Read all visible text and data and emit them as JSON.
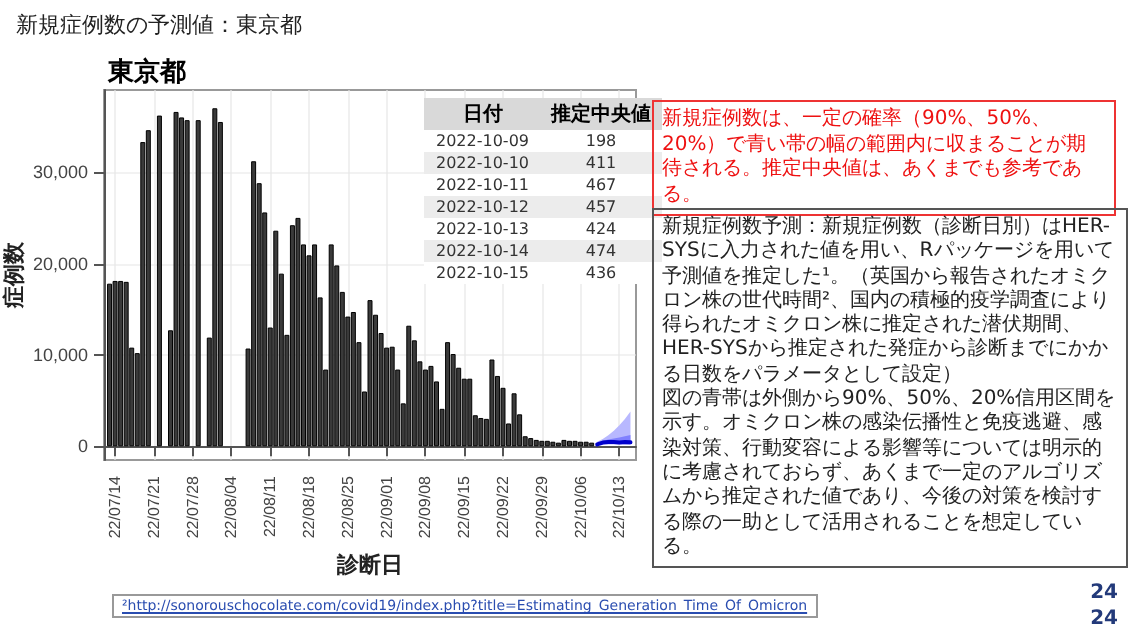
{
  "chart_data": {
    "type": "bar",
    "title": "新規症例数の予測値：東京都",
    "subtitle": "東京都",
    "xlabel": "診断日",
    "ylabel": "症例数",
    "annotations": [
      "新規症例数は、一定の確率（90%、50%、20%）で青い帯の幅の範囲内に収まることが期待される。推定中央値は、あくまでも参考である。",
      "新規症例数予測：新規症例数（診断日別）はHER-SYSに入力された値を用い、Rパッケージを用いて予測値を推定した¹。（英国から報告されたオミクロン株の世代時間²、国内の積極的疫学調査により得られたオミクロン株に推定された潜伏期間、HER-SYSから推定された発症から診断までにかかる日数をパラメータとして設定）",
      "図の青帯は外側から90%、50%、20%信用区間を示す。オミクロン株の感染伝播性と免疫逃避、感染対策、行動変容による影響等については明示的に考慮されておらず、あくまで一定のアルゴリズムから推定された値であり、今後の対策を検討する際の一助として活用されることを想定している。",
      "²http://sonorouschocolate.com/covid19/index.php?title=Estimating_Generation_Time_Of_Omicron",
      "24",
      "24",
      "日付",
      "推定中央値",
      "2022-10-09",
      "2022-10-10",
      "2022-10-11",
      "2022-10-12",
      "2022-10-13",
      "2022-10-14",
      "2022-10-15",
      "198",
      "411",
      "467",
      "457",
      "424",
      "474",
      "436"
    ],
    "xlim": [
      "2022-07-12",
      "2022-10-16"
    ],
    "xticks": [
      {
        "value": "2022-07-14",
        "label": "22/07/14"
      },
      {
        "value": "2022-07-21",
        "label": "22/07/21"
      },
      {
        "value": "2022-07-28",
        "label": "22/07/28"
      },
      {
        "value": "2022-08-04",
        "label": "22/08/04"
      },
      {
        "value": "2022-08-11",
        "label": "22/08/11"
      },
      {
        "value": "2022-08-18",
        "label": "22/08/18"
      },
      {
        "value": "2022-08-25",
        "label": "22/08/25"
      },
      {
        "value": "2022-09-01",
        "label": "22/09/01"
      },
      {
        "value": "2022-09-08",
        "label": "22/09/08"
      },
      {
        "value": "2022-09-15",
        "label": "22/09/15"
      },
      {
        "value": "2022-09-22",
        "label": "22/09/22"
      },
      {
        "value": "2022-09-29",
        "label": "22/09/29"
      },
      {
        "value": "2022-10-06",
        "label": "22/10/06"
      },
      {
        "value": "2022-10-13",
        "label": "22/10/13"
      }
    ],
    "ylim": [
      -1500,
      39000
    ],
    "yticks": [
      0,
      {
        "value": 10000,
        "label": "10,000"
      },
      {
        "value": 20000,
        "label": "20,000"
      },
      {
        "value": 30000,
        "label": "30,000"
      }
    ],
    "grid": true,
    "series": [
      {
        "color": "#3a3a3a",
        "x": [
          "2022-07-13",
          "2022-07-14",
          "2022-07-15",
          "2022-07-16",
          "2022-07-17",
          "2022-07-18",
          "2022-07-19",
          "2022-07-20",
          "2022-07-21",
          "2022-07-22",
          "2022-07-23",
          "2022-07-24",
          "2022-07-25",
          "2022-07-26",
          "2022-07-27",
          "2022-07-28",
          "2022-07-29",
          "2022-07-30",
          "2022-07-31",
          "2022-08-01",
          "2022-08-02",
          "2022-08-03",
          "2022-08-04",
          "2022-08-05",
          "2022-08-06",
          "2022-08-07",
          "2022-08-08",
          "2022-08-09",
          "2022-08-10",
          "2022-08-11",
          "2022-08-12",
          "2022-08-13",
          "2022-08-14",
          "2022-08-15",
          "2022-08-16",
          "2022-08-17",
          "2022-08-18",
          "2022-08-19",
          "2022-08-20",
          "2022-08-21",
          "2022-08-22",
          "2022-08-23",
          "2022-08-24",
          "2022-08-25",
          "2022-08-26",
          "2022-08-27",
          "2022-08-28",
          "2022-08-29",
          "2022-08-30",
          "2022-08-31",
          "2022-09-01",
          "2022-09-02",
          "2022-09-03",
          "2022-09-04",
          "2022-09-05",
          "2022-09-06",
          "2022-09-07",
          "2022-09-08",
          "2022-09-09",
          "2022-09-10",
          "2022-09-11",
          "2022-09-12",
          "2022-09-13",
          "2022-09-14",
          "2022-09-15",
          "2022-09-16",
          "2022-09-17",
          "2022-09-18",
          "2022-09-19",
          "2022-09-20",
          "2022-09-21",
          "2022-09-22",
          "2022-09-23",
          "2022-09-24",
          "2022-09-25",
          "2022-09-26",
          "2022-09-27",
          "2022-09-28",
          "2022-09-29",
          "2022-09-30",
          "2022-10-01",
          "2022-10-02",
          "2022-10-03",
          "2022-10-04",
          "2022-10-05",
          "2022-10-06",
          "2022-10-07",
          "2022-10-08"
        ],
        "values": [
          17800,
          18100,
          18100,
          18000,
          10800,
          10200,
          33300,
          34600,
          null,
          36200,
          null,
          12700,
          36600,
          36000,
          35700,
          null,
          35700,
          null,
          11900,
          37000,
          35500,
          null,
          null,
          null,
          null,
          10700,
          31200,
          28800,
          25600,
          13000,
          23600,
          18900,
          12200,
          24200,
          25000,
          22100,
          20900,
          22100,
          16300,
          8400,
          22100,
          19800,
          16900,
          14200,
          14700,
          11400,
          6000,
          16000,
          14400,
          12400,
          10800,
          10900,
          8400,
          4700,
          13200,
          11600,
          9300,
          8400,
          8800,
          7100,
          4100,
          11400,
          10100,
          8600,
          7400,
          7400,
          3400,
          3100,
          3000,
          9500,
          7700,
          6400,
          2500,
          5800,
          3500,
          1100,
          900,
          700,
          600,
          600,
          500,
          400,
          700,
          600,
          600,
          500,
          500,
          400
        ]
      },
      {
        "type": "line",
        "color": "#b8b8ff",
        "x": [
          "2022-10-09",
          "2022-10-10",
          "2022-10-11",
          "2022-10-12",
          "2022-10-13",
          "2022-10-14",
          "2022-10-15"
        ],
        "values": [
          null,
          null,
          null,
          null,
          null,
          null,
          null
        ],
        "lower": [
          150,
          200,
          200,
          200,
          200,
          200,
          150
        ],
        "upper": [
          500,
          800,
          1200,
          1700,
          2300,
          3000,
          3800
        ]
      },
      {
        "type": "line",
        "color": "#8080ff",
        "x": [
          "2022-10-09",
          "2022-10-10",
          "2022-10-11",
          "2022-10-12",
          "2022-10-13",
          "2022-10-14",
          "2022-10-15"
        ],
        "values": [
          null,
          null,
          null,
          null,
          null,
          null,
          null
        ],
        "lower": [
          170,
          300,
          330,
          320,
          300,
          310,
          280
        ],
        "upper": [
          300,
          600,
          750,
          850,
          950,
          1100,
          1250
        ]
      },
      {
        "type": "line",
        "color": "#0000cc",
        "x": [
          "2022-10-09",
          "2022-10-10",
          "2022-10-11",
          "2022-10-12",
          "2022-10-13",
          "2022-10-14",
          "2022-10-15"
        ],
        "values": [
          198,
          411,
          467,
          457,
          424,
          474,
          436
        ]
      }
    ]
  }
}
